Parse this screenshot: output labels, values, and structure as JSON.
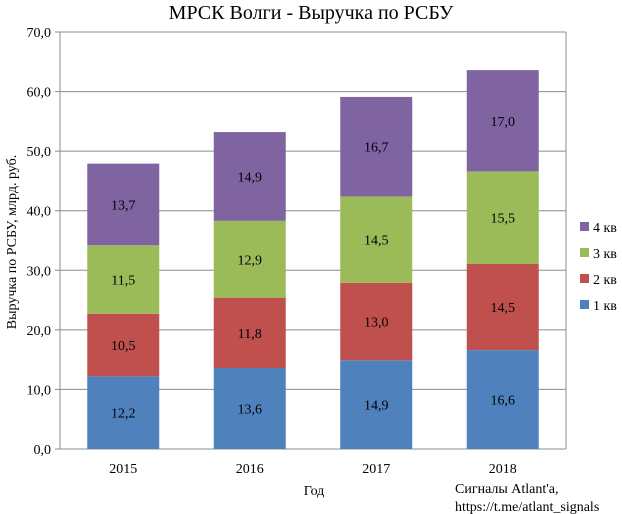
{
  "chart_data": {
    "type": "bar",
    "stacked": true,
    "title": "МРСК Волги - Выручка по РСБУ",
    "xlabel": "Год",
    "ylabel": "Выручка по РСБУ, млрд. руб.",
    "categories": [
      "2015",
      "2016",
      "2017",
      "2018"
    ],
    "ylim": [
      0,
      70
    ],
    "yticks": [
      "0,0",
      "10,0",
      "20,0",
      "30,0",
      "40,0",
      "50,0",
      "60,0",
      "70,0"
    ],
    "grid": true,
    "legend_position": "right",
    "series": [
      {
        "name": "1 кв",
        "color": "#4f81bd",
        "values": [
          12.2,
          13.6,
          14.9,
          16.6
        ],
        "labels": [
          "12,2",
          "13,6",
          "14,9",
          "16,6"
        ]
      },
      {
        "name": "2 кв",
        "color": "#c0504d",
        "values": [
          10.5,
          11.8,
          13.0,
          14.5
        ],
        "labels": [
          "10,5",
          "11,8",
          "13,0",
          "14,5"
        ]
      },
      {
        "name": "3 кв",
        "color": "#9bbb59",
        "values": [
          11.5,
          12.9,
          14.5,
          15.5
        ],
        "labels": [
          "11,5",
          "12,9",
          "14,5",
          "15,5"
        ]
      },
      {
        "name": "4 кв",
        "color": "#8064a2",
        "values": [
          13.7,
          14.9,
          16.7,
          17.0
        ],
        "labels": [
          "13,7",
          "14,9",
          "16,7",
          "17,0"
        ]
      }
    ]
  },
  "credit": {
    "line1": "Сигналы Atlant'a,",
    "line2": "https://t.me/atlant_signals"
  }
}
